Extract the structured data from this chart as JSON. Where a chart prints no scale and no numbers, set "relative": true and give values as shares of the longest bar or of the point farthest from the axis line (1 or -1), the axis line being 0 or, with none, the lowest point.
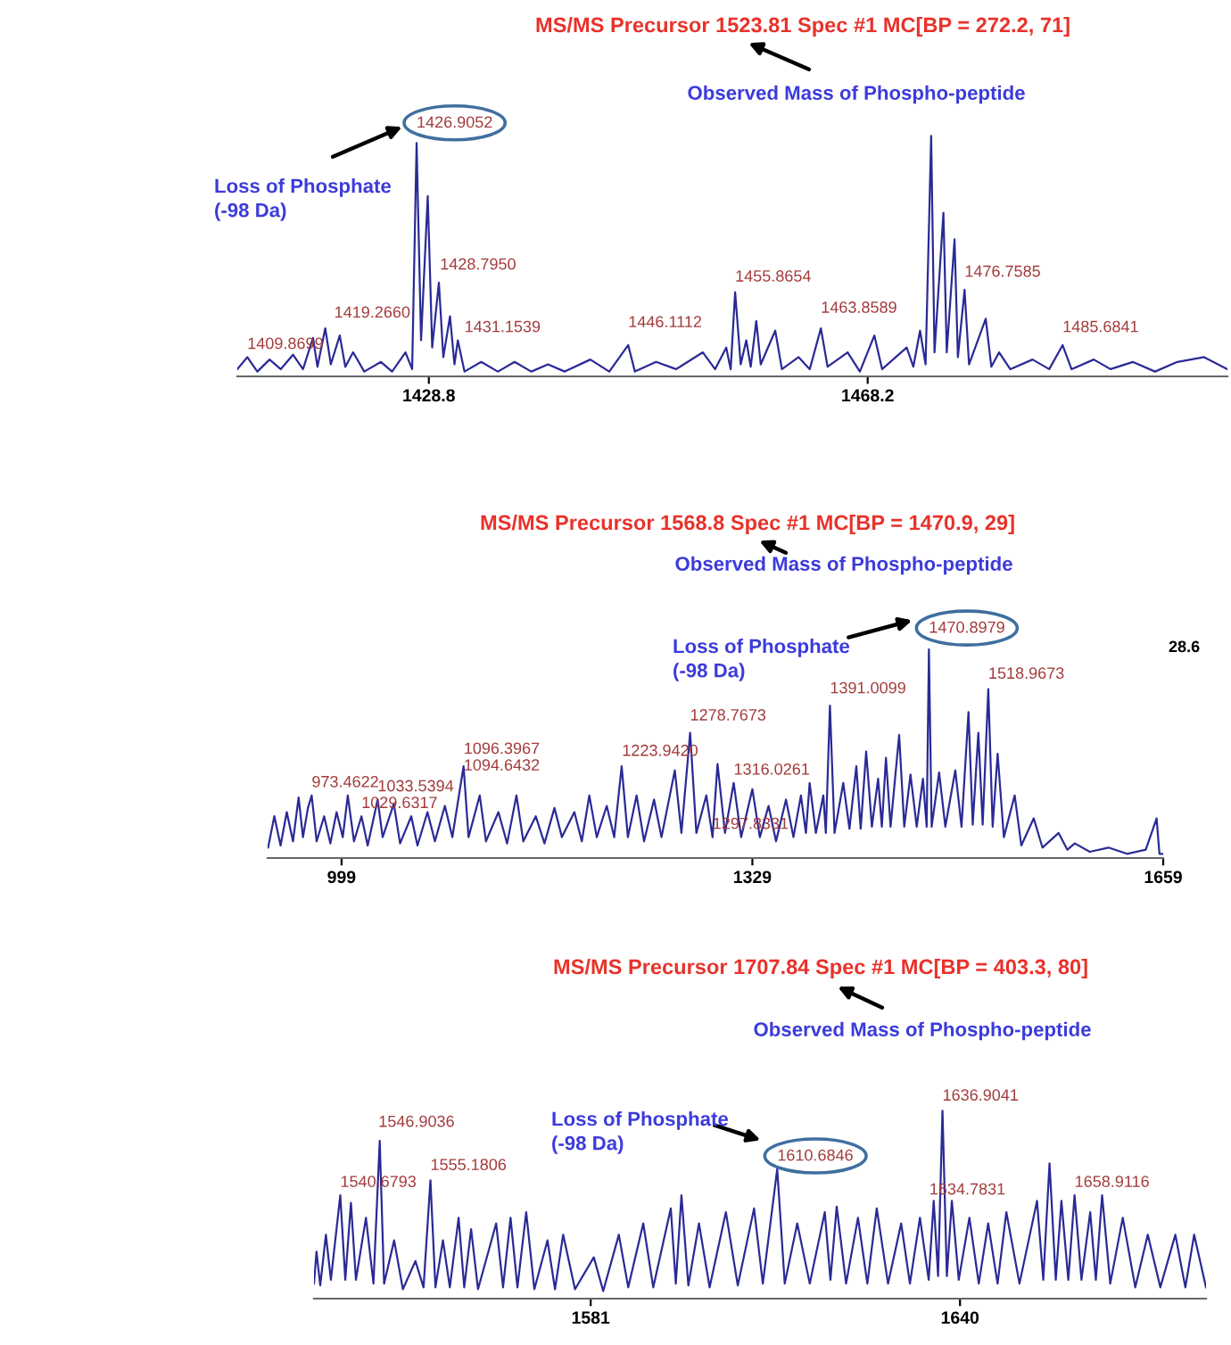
{
  "chart_data": [
    {
      "type": "line",
      "title": "MS/MS Precursor 1523.81 Spec #1 MC[BP = 272.2, 71]",
      "relative": true,
      "xlim": [
        1411.6,
        1500.5
      ],
      "xticks": [
        1428.8,
        1468.2
      ],
      "x": [
        1411.6,
        1412.5,
        1413.4,
        1414.5,
        1415.5,
        1416.6,
        1417.5,
        1418.4,
        1418.8,
        1419.5,
        1420.0,
        1420.8,
        1421.3,
        1422.0,
        1423.0,
        1424.5,
        1425.5,
        1426.7,
        1427.3,
        1427.7,
        1428.1,
        1428.7,
        1429.1,
        1429.7,
        1430.1,
        1430.7,
        1431.1,
        1431.4,
        1432.0,
        1433.5,
        1435.0,
        1436.5,
        1438.0,
        1439.5,
        1441.0,
        1443.3,
        1445.0,
        1446.7,
        1447.3,
        1449.2,
        1451.0,
        1453.4,
        1454.5,
        1455.5,
        1455.9,
        1456.3,
        1456.8,
        1457.3,
        1457.7,
        1458.2,
        1458.6,
        1459.9,
        1460.5,
        1462.0,
        1463.0,
        1464.0,
        1464.6,
        1466.4,
        1467.5,
        1468.8,
        1469.5,
        1471.7,
        1472.3,
        1472.9,
        1473.4,
        1473.9,
        1474.2,
        1475.0,
        1475.3,
        1476.0,
        1476.3,
        1476.9,
        1477.3,
        1478.8,
        1479.3,
        1480.0,
        1481.0,
        1483.0,
        1484.5,
        1485.7,
        1486.5,
        1488.5,
        1490.0,
        1492.0,
        1494.0,
        1496.0,
        1498.4,
        1500.5
      ],
      "series": [
        {
          "color": "#2a2a96",
          "values": [
            0.03,
            0.08,
            0.02,
            0.07,
            0.03,
            0.09,
            0.03,
            0.16,
            0.04,
            0.2,
            0.05,
            0.17,
            0.04,
            0.1,
            0.02,
            0.06,
            0.02,
            0.1,
            0.03,
            0.97,
            0.15,
            0.75,
            0.12,
            0.39,
            0.08,
            0.25,
            0.05,
            0.15,
            0.02,
            0.06,
            0.02,
            0.06,
            0.02,
            0.05,
            0.02,
            0.07,
            0.02,
            0.13,
            0.02,
            0.06,
            0.03,
            0.1,
            0.03,
            0.12,
            0.03,
            0.35,
            0.05,
            0.15,
            0.04,
            0.23,
            0.05,
            0.19,
            0.03,
            0.08,
            0.03,
            0.2,
            0.04,
            0.1,
            0.02,
            0.17,
            0.03,
            0.12,
            0.04,
            0.19,
            0.05,
            1.0,
            0.1,
            0.68,
            0.1,
            0.57,
            0.08,
            0.36,
            0.05,
            0.24,
            0.04,
            0.1,
            0.03,
            0.07,
            0.03,
            0.13,
            0.03,
            0.07,
            0.03,
            0.06,
            0.02,
            0.06,
            0.08,
            0.03
          ]
        }
      ],
      "annotations": [
        {
          "text": "1426.9052",
          "x": 1427.7,
          "y": 1.0
        },
        {
          "text": "1409.8699",
          "x": 1412.5,
          "y": 0.08
        },
        {
          "text": "1419.2660",
          "x": 1420.3,
          "y": 0.21
        },
        {
          "text": "1428.7950",
          "x": 1429.8,
          "y": 0.41
        },
        {
          "text": "1431.1539",
          "x": 1432.0,
          "y": 0.15
        },
        {
          "text": "1446.1112",
          "x": 1446.7,
          "y": 0.17
        },
        {
          "text": "1455.8654",
          "x": 1456.3,
          "y": 0.36
        },
        {
          "text": "1463.8589",
          "x": 1464.0,
          "y": 0.23
        },
        {
          "text": "1476.7585",
          "x": 1476.9,
          "y": 0.38
        },
        {
          "text": "1485.6841",
          "x": 1485.7,
          "y": 0.15
        },
        "Observed Mass of Phospho-peptide",
        "Loss of Phosphate\n(-98 Da)"
      ]
    },
    {
      "type": "line",
      "title": "MS/MS Precursor 1568.8 Spec #1 MC[BP = 1470.9, 29]",
      "relative": true,
      "xlim": [
        939.6,
        1659
      ],
      "xticks": [
        999,
        1329,
        1659
      ],
      "x": [
        940,
        945,
        950,
        955,
        960,
        964.5,
        968,
        972,
        975,
        979,
        985,
        990,
        995,
        1000,
        1004,
        1009,
        1015,
        1020,
        1028,
        1032,
        1041,
        1046,
        1055,
        1060,
        1068,
        1074,
        1082,
        1088,
        1097,
        1101,
        1110,
        1115,
        1125,
        1132,
        1139.5,
        1145,
        1155,
        1162,
        1170,
        1176,
        1186,
        1192,
        1198,
        1204,
        1212,
        1218,
        1224,
        1229,
        1236,
        1242,
        1250,
        1256,
        1266.7,
        1272,
        1279,
        1284,
        1292,
        1297,
        1301,
        1307,
        1314,
        1320,
        1329,
        1335,
        1342,
        1348,
        1356,
        1362,
        1368,
        1372,
        1375,
        1380,
        1386,
        1388,
        1391.3,
        1395,
        1402,
        1407,
        1412.5,
        1416,
        1420.4,
        1425,
        1430,
        1433,
        1436.3,
        1440,
        1446.9,
        1451,
        1456,
        1461,
        1466,
        1469,
        1470.8,
        1473,
        1479,
        1484,
        1492,
        1497,
        1502.6,
        1506,
        1510.5,
        1514,
        1518.5,
        1522,
        1526,
        1531,
        1539.7,
        1545,
        1555,
        1562,
        1575,
        1582,
        1588,
        1600,
        1615,
        1630,
        1645,
        1653.7,
        1656,
        1659
      ],
      "series": [
        {
          "color": "#2a2a96",
          "values": [
            0.05,
            0.2,
            0.06,
            0.22,
            0.08,
            0.29,
            0.1,
            0.24,
            0.3,
            0.08,
            0.2,
            0.07,
            0.22,
            0.1,
            0.3,
            0.08,
            0.2,
            0.06,
            0.28,
            0.1,
            0.26,
            0.07,
            0.2,
            0.06,
            0.22,
            0.08,
            0.25,
            0.1,
            0.44,
            0.1,
            0.3,
            0.08,
            0.22,
            0.07,
            0.3,
            0.08,
            0.2,
            0.07,
            0.24,
            0.1,
            0.22,
            0.08,
            0.3,
            0.1,
            0.25,
            0.1,
            0.44,
            0.1,
            0.3,
            0.08,
            0.28,
            0.1,
            0.42,
            0.12,
            0.6,
            0.12,
            0.3,
            0.1,
            0.45,
            0.12,
            0.36,
            0.1,
            0.33,
            0.1,
            0.25,
            0.08,
            0.28,
            0.1,
            0.3,
            0.12,
            0.36,
            0.12,
            0.3,
            0.12,
            0.73,
            0.12,
            0.36,
            0.14,
            0.44,
            0.14,
            0.51,
            0.15,
            0.38,
            0.15,
            0.48,
            0.15,
            0.59,
            0.15,
            0.4,
            0.15,
            0.38,
            0.15,
            1.0,
            0.15,
            0.41,
            0.15,
            0.42,
            0.15,
            0.7,
            0.16,
            0.6,
            0.16,
            0.81,
            0.15,
            0.5,
            0.1,
            0.3,
            0.06,
            0.19,
            0.05,
            0.12,
            0.04,
            0.07,
            0.03,
            0.05,
            0.02,
            0.04,
            0.19,
            0.02,
            0.02
          ]
        }
      ],
      "annotations": [
        {
          "text": "1470.8979",
          "x": 1470.8,
          "y": 1.04
        },
        {
          "text": "973.4622",
          "x": 975,
          "y": 0.3
        },
        {
          "text": "1033.5394",
          "x": 1028,
          "y": 0.28
        },
        {
          "text": "1029.6317",
          "x": 1015,
          "y": 0.2
        },
        {
          "text": "1096.3967",
          "x": 1097.1,
          "y": 0.46
        },
        {
          "text": "1094.6432",
          "x": 1097.1,
          "y": 0.38
        },
        {
          "text": "1223.9420",
          "x": 1224.3,
          "y": 0.45
        },
        {
          "text": "1278.7673",
          "x": 1278.9,
          "y": 0.62
        },
        {
          "text": "1316.0261",
          "x": 1314,
          "y": 0.36
        },
        {
          "text": "1297.8331",
          "x": 1297,
          "y": 0.1
        },
        {
          "text": "1391.0099",
          "x": 1391.3,
          "y": 0.75
        },
        {
          "text": "1518.9673",
          "x": 1518.5,
          "y": 0.82
        },
        "Observed Mass of Phospho-peptide",
        "Loss of Phosphate\n(-98 Da)",
        "28.6"
      ]
    },
    {
      "type": "line",
      "title": "MS/MS Precursor 1707.84 Spec #1 MC[BP = 403.3, 80]",
      "relative": true,
      "xlim": [
        1536.8,
        1679.3
      ],
      "xticks": [
        1581,
        1640
      ],
      "x": [
        1536.8,
        1537.2,
        1537.8,
        1538.7,
        1539.5,
        1541.0,
        1541.8,
        1542.7,
        1543.5,
        1545.1,
        1546.3,
        1547.3,
        1548.0,
        1549.6,
        1551,
        1553,
        1554.3,
        1555.4,
        1556.2,
        1557.4,
        1558.5,
        1559.9,
        1560.8,
        1561.9,
        1563,
        1565.9,
        1567,
        1568.2,
        1569.3,
        1570.7,
        1572,
        1574.1,
        1575.3,
        1576.6,
        1578.5,
        1581.5,
        1583,
        1585.5,
        1587,
        1589.4,
        1591,
        1593.8,
        1594.6,
        1595.5,
        1596.6,
        1598.3,
        1600,
        1602.6,
        1604.5,
        1607.1,
        1608.5,
        1610.8,
        1612,
        1614,
        1616,
        1618.4,
        1619.3,
        1620.3,
        1621.8,
        1623.7,
        1625.2,
        1626.7,
        1628.5,
        1630.6,
        1632,
        1633.6,
        1635,
        1635.8,
        1636.5,
        1637.2,
        1637.9,
        1638.7,
        1639.8,
        1641.5,
        1643,
        1644.5,
        1646,
        1647.4,
        1649.5,
        1652.3,
        1653.3,
        1654.3,
        1655.3,
        1656.2,
        1657.3,
        1658.3,
        1659.4,
        1660.8,
        1661.7,
        1662.7,
        1664,
        1666.0,
        1668,
        1670,
        1672,
        1674.4,
        1676,
        1677.4,
        1679.3
      ],
      "series": [
        {
          "color": "#2a2a96",
          "values": [
            0.08,
            0.25,
            0.07,
            0.34,
            0.1,
            0.55,
            0.1,
            0.51,
            0.1,
            0.43,
            0.08,
            0.84,
            0.08,
            0.31,
            0.05,
            0.2,
            0.06,
            0.63,
            0.06,
            0.31,
            0.06,
            0.43,
            0.06,
            0.37,
            0.05,
            0.4,
            0.06,
            0.43,
            0.06,
            0.46,
            0.05,
            0.31,
            0.05,
            0.34,
            0.05,
            0.22,
            0.04,
            0.34,
            0.06,
            0.4,
            0.06,
            0.48,
            0.08,
            0.55,
            0.07,
            0.4,
            0.06,
            0.46,
            0.07,
            0.48,
            0.08,
            0.69,
            0.08,
            0.4,
            0.08,
            0.46,
            0.1,
            0.49,
            0.08,
            0.43,
            0.08,
            0.48,
            0.08,
            0.4,
            0.08,
            0.43,
            0.1,
            0.52,
            0.12,
            1.0,
            0.12,
            0.52,
            0.1,
            0.43,
            0.08,
            0.4,
            0.08,
            0.46,
            0.08,
            0.52,
            0.1,
            0.72,
            0.1,
            0.52,
            0.1,
            0.55,
            0.1,
            0.46,
            0.1,
            0.55,
            0.08,
            0.43,
            0.06,
            0.34,
            0.06,
            0.34,
            0.06,
            0.34,
            0.06
          ]
        }
      ],
      "annotations": [
        {
          "text": "1610.6846",
          "x": 1610.8,
          "y": 0.69
        },
        {
          "text": "1546.9036",
          "x": 1547.1,
          "y": 0.87
        },
        {
          "text": "1540.6793",
          "x": 1541.0,
          "y": 0.55
        },
        {
          "text": "1555.1806",
          "x": 1555.4,
          "y": 0.64
        },
        {
          "text": "1636.9041",
          "x": 1637.2,
          "y": 1.01
        },
        {
          "text": "1634.7831",
          "x": 1635.1,
          "y": 0.51
        },
        {
          "text": "1658.9116",
          "x": 1658.3,
          "y": 0.55
        },
        "Observed Mass of Phospho-peptide",
        "Loss of Phosphate\n(-98 Da)"
      ]
    }
  ]
}
